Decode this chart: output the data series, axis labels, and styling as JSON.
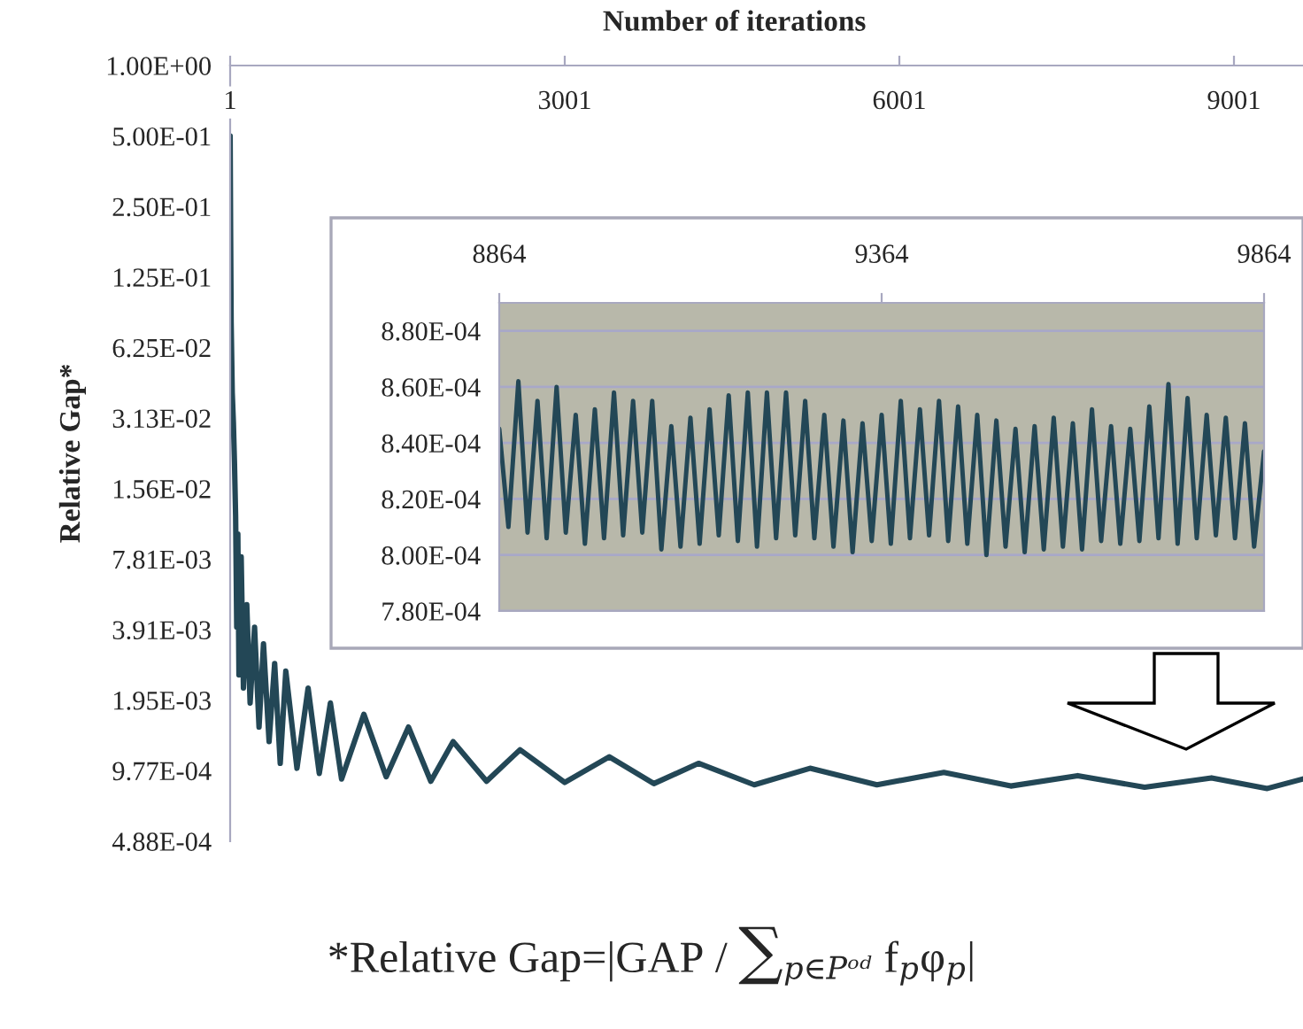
{
  "chart_data": [
    {
      "type": "line",
      "xlabel": "Number of iterations",
      "ylabel": "Relative Gap*",
      "log": "y",
      "line_style": "solid",
      "marker": "none",
      "xlim": [
        1,
        9620
      ],
      "xticks": [
        1,
        3001,
        6001,
        9001
      ],
      "ylim": [
        0.000488,
        1
      ],
      "yticks": [
        {
          "value": 1,
          "label": "1.00E+00"
        },
        {
          "value": 0.5,
          "label": "5.00E-01"
        },
        {
          "value": 0.25,
          "label": "2.50E-01"
        },
        {
          "value": 0.125,
          "label": "1.25E-01"
        },
        {
          "value": 0.0625,
          "label": "6.25E-02"
        },
        {
          "value": 0.03125,
          "label": "3.13E-02"
        },
        {
          "value": 0.015625,
          "label": "1.56E-02"
        },
        {
          "value": 0.0078125,
          "label": "7.81E-03"
        },
        {
          "value": 0.00390625,
          "label": "3.91E-03"
        },
        {
          "value": 0.001953,
          "label": "1.95E-03"
        },
        {
          "value": 0.000977,
          "label": "9.77E-04"
        },
        {
          "value": 0.000488,
          "label": "4.88E-04"
        }
      ],
      "x": [
        1,
        5,
        10,
        20,
        30,
        40,
        50,
        60,
        70,
        80,
        100,
        120,
        150,
        180,
        220,
        260,
        300,
        350,
        400,
        450,
        500,
        600,
        700,
        800,
        900,
        1000,
        1200,
        1400,
        1600,
        1800,
        2000,
        2300,
        2600,
        3000,
        3400,
        3800,
        4200,
        4700,
        5200,
        5800,
        6400,
        7000,
        7600,
        8200,
        8800,
        9300,
        9620
      ],
      "series": [
        {
          "color": "#234756",
          "values": [
            0.5,
            0.2,
            0.08,
            0.04,
            0.03,
            0.02,
            0.012,
            0.004,
            0.01,
            0.0025,
            0.008,
            0.0022,
            0.005,
            0.0019,
            0.004,
            0.0015,
            0.0034,
            0.0013,
            0.0028,
            0.00105,
            0.0026,
            0.001,
            0.0022,
            0.00095,
            0.0019,
            0.0009,
            0.0017,
            0.00092,
            0.0015,
            0.00088,
            0.0013,
            0.00088,
            0.0012,
            0.00087,
            0.00112,
            0.00086,
            0.00105,
            0.00085,
            0.001,
            0.00085,
            0.00096,
            0.00084,
            0.00093,
            0.00083,
            0.00091,
            0.00082,
            0.0009
          ]
        }
      ],
      "annotations": [
        "*Relative Gap=|GAP / ∑$_{p∈Pᵒᵈ}$ f$_{p}$φ$_{p}$|"
      ]
    },
    {
      "type": "line",
      "grid": "y",
      "line_style": "solid",
      "marker": "none",
      "tick_labels": true,
      "xlim": [
        8864,
        9864
      ],
      "xticks": [
        8864,
        9364,
        9864
      ],
      "ylim": [
        0.00078,
        0.00089
      ],
      "yticks": [
        {
          "value": 0.00078,
          "label": "7.80E-04"
        },
        {
          "value": 0.0008,
          "label": "8.00E-04"
        },
        {
          "value": 0.00082,
          "label": "8.20E-04"
        },
        {
          "value": 0.00084,
          "label": "8.40E-04"
        },
        {
          "value": 0.00086,
          "label": "8.60E-04"
        },
        {
          "value": 0.00088,
          "label": "8.80E-04"
        }
      ],
      "x": [
        8864,
        8876,
        8889,
        8901,
        8914,
        8926,
        8939,
        8951,
        8964,
        8976,
        8989,
        9001,
        9014,
        9026,
        9039,
        9051,
        9064,
        9076,
        9089,
        9101,
        9114,
        9126,
        9139,
        9151,
        9164,
        9176,
        9189,
        9201,
        9214,
        9226,
        9239,
        9251,
        9264,
        9276,
        9289,
        9301,
        9314,
        9326,
        9339,
        9351,
        9364,
        9376,
        9389,
        9401,
        9414,
        9426,
        9439,
        9451,
        9464,
        9476,
        9489,
        9501,
        9514,
        9526,
        9539,
        9551,
        9564,
        9576,
        9589,
        9601,
        9614,
        9626,
        9639,
        9651,
        9664,
        9676,
        9689,
        9701,
        9714,
        9726,
        9739,
        9751,
        9764,
        9776,
        9789,
        9801,
        9814,
        9826,
        9839,
        9851,
        9864
      ],
      "series": [
        {
          "color": "#234756",
          "values": [
            0.000845,
            0.00081,
            0.000862,
            0.000808,
            0.000855,
            0.000806,
            0.00086,
            0.000808,
            0.00085,
            0.000804,
            0.000852,
            0.000806,
            0.000858,
            0.000807,
            0.000855,
            0.000808,
            0.000855,
            0.000802,
            0.000846,
            0.000803,
            0.000849,
            0.000804,
            0.000852,
            0.000807,
            0.000857,
            0.000805,
            0.000858,
            0.000803,
            0.000858,
            0.000806,
            0.000858,
            0.000807,
            0.000855,
            0.000806,
            0.00085,
            0.000803,
            0.000848,
            0.000801,
            0.000847,
            0.000805,
            0.00085,
            0.000804,
            0.000855,
            0.000806,
            0.000852,
            0.000807,
            0.000855,
            0.000805,
            0.000853,
            0.000804,
            0.00085,
            0.0008,
            0.000848,
            0.000803,
            0.000845,
            0.000801,
            0.000846,
            0.000802,
            0.000849,
            0.000803,
            0.000847,
            0.000802,
            0.000852,
            0.000805,
            0.000846,
            0.000804,
            0.000845,
            0.000805,
            0.000853,
            0.000806,
            0.000861,
            0.000804,
            0.000856,
            0.000806,
            0.00085,
            0.000807,
            0.000849,
            0.000806,
            0.000847,
            0.000803,
            0.000837
          ]
        }
      ]
    }
  ]
}
